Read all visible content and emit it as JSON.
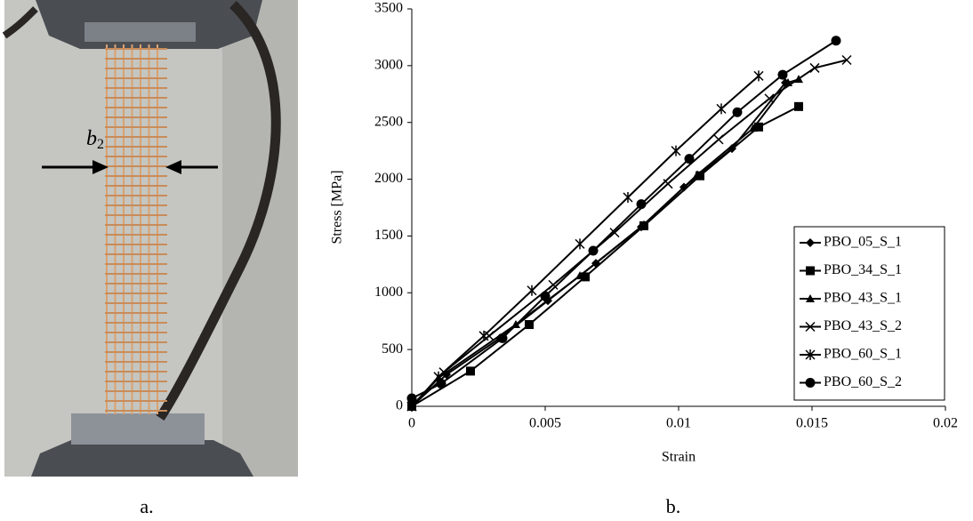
{
  "figure": {
    "panel_a_label": "a.",
    "panel_b_label": "b.",
    "annotation": {
      "base": "b",
      "sub": "2"
    }
  },
  "chart_data": {
    "type": "line",
    "x_label": "Strain",
    "y_label": "Stress [MPa]",
    "xlim": [
      0,
      0.02
    ],
    "xticks": [
      0,
      0.005,
      0.01,
      0.015,
      0.02
    ],
    "ylim": [
      0,
      3500
    ],
    "yticks": [
      0,
      500,
      1000,
      1500,
      2000,
      2500,
      3000,
      3500
    ],
    "grid": false,
    "legend": "lower right",
    "series": [
      {
        "name": "PBO_05_S_1",
        "color": "#000000",
        "marker": "diamond",
        "x": [
          0,
          0.0013,
          0.0033,
          0.0051,
          0.0069,
          0.0086,
          0.0102,
          0.012,
          0.014
        ],
        "values": [
          0,
          280,
          600,
          930,
          1260,
          1580,
          1930,
          2270,
          2850
        ]
      },
      {
        "name": "PBO_34_S_1",
        "color": "#000000",
        "marker": "square",
        "x": [
          0,
          0.0022,
          0.0044,
          0.0065,
          0.0087,
          0.0108,
          0.013,
          0.0145
        ],
        "values": [
          0,
          310,
          720,
          1140,
          1590,
          2030,
          2460,
          2640
        ]
      },
      {
        "name": "PBO_43_S_1",
        "color": "#000000",
        "marker": "triangle",
        "x": [
          0,
          0.001,
          0.0039,
          0.0063,
          0.0087,
          0.0107,
          0.0128,
          0.0141,
          0.0145
        ],
        "values": [
          0,
          250,
          720,
          1150,
          1600,
          2040,
          2450,
          2850,
          2880
        ]
      },
      {
        "name": "PBO_43_S_2",
        "color": "#000000",
        "marker": "x",
        "x": [
          0,
          0.0012,
          0.0029,
          0.0053,
          0.0076,
          0.0096,
          0.0115,
          0.0134,
          0.0151,
          0.0163
        ],
        "values": [
          0,
          300,
          620,
          1070,
          1530,
          1960,
          2350,
          2710,
          2980,
          3050
        ]
      },
      {
        "name": "PBO_60_S_1",
        "color": "#000000",
        "marker": "star",
        "x": [
          0,
          0.001,
          0.0027,
          0.0045,
          0.0063,
          0.0081,
          0.0099,
          0.0116,
          0.013
        ],
        "values": [
          0,
          260,
          620,
          1020,
          1430,
          1840,
          2250,
          2620,
          2910
        ]
      },
      {
        "name": "PBO_60_S_2",
        "color": "#000000",
        "marker": "circle",
        "x": [
          0,
          0.0011,
          0.0034,
          0.005,
          0.0068,
          0.0086,
          0.0104,
          0.0122,
          0.0139,
          0.0159
        ],
        "values": [
          70,
          200,
          600,
          970,
          1370,
          1780,
          2180,
          2590,
          2920,
          3220
        ]
      }
    ]
  }
}
